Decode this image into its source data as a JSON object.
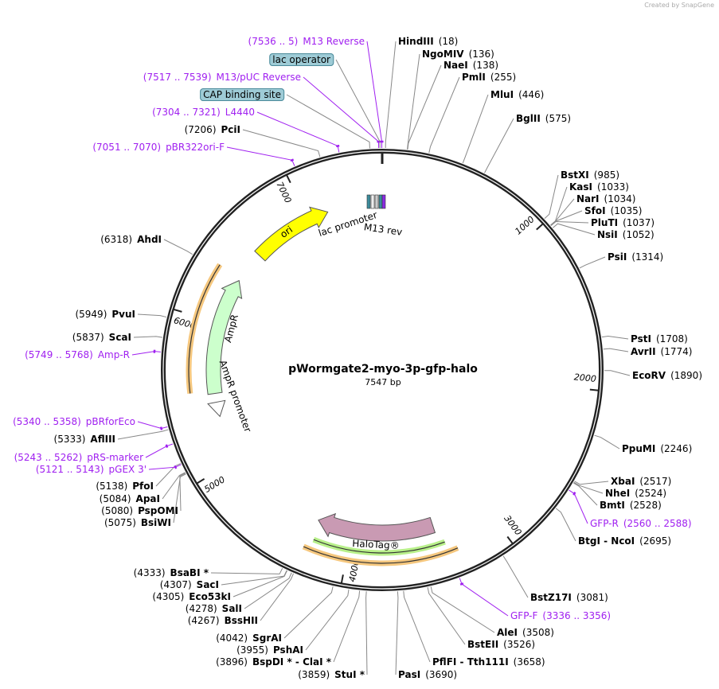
{
  "watermark": "Created by SnapGene",
  "plasmid": {
    "name": "pWormgate2-myo-3p-gfp-halo",
    "size_label": "7547 bp",
    "length": 7547
  },
  "ticks": [
    "1000",
    "2000",
    "3000",
    "4000",
    "5000",
    "6000",
    "7000"
  ],
  "features": [
    {
      "name": "ori",
      "color": "#ffff00"
    },
    {
      "name": "AmpR",
      "color": "#ccffcc"
    },
    {
      "name": "AmpR promoter",
      "color": "#ffffff"
    },
    {
      "name": "HaloTag®",
      "color": "#c99ab3"
    },
    {
      "name": "lac promoter",
      "color": "#3c8c9c"
    },
    {
      "name": "M13 rev",
      "color": "#8a2be2"
    }
  ],
  "labels": [
    {
      "name": "HindIII",
      "pos": "(18)",
      "bp": 18,
      "type": "enzyme"
    },
    {
      "name": "NgoMIV",
      "pos": "(136)",
      "bp": 136,
      "type": "enzyme"
    },
    {
      "name": "NaeI",
      "pos": "(138)",
      "bp": 138,
      "type": "enzyme"
    },
    {
      "name": "PmlI",
      "pos": "(255)",
      "bp": 255,
      "type": "enzyme"
    },
    {
      "name": "MluI",
      "pos": "(446)",
      "bp": 446,
      "type": "enzyme"
    },
    {
      "name": "BglII",
      "pos": "(575)",
      "bp": 575,
      "type": "enzyme"
    },
    {
      "name": "BstXI",
      "pos": "(985)",
      "bp": 985,
      "type": "enzyme"
    },
    {
      "name": "KasI",
      "pos": "(1033)",
      "bp": 1033,
      "type": "enzyme"
    },
    {
      "name": "NarI",
      "pos": "(1034)",
      "bp": 1034,
      "type": "enzyme"
    },
    {
      "name": "SfoI",
      "pos": "(1035)",
      "bp": 1035,
      "type": "enzyme"
    },
    {
      "name": "PluTI",
      "pos": "(1037)",
      "bp": 1037,
      "type": "enzyme"
    },
    {
      "name": "NsiI",
      "pos": "(1052)",
      "bp": 1052,
      "type": "enzyme"
    },
    {
      "name": "PsiI",
      "pos": "(1314)",
      "bp": 1314,
      "type": "enzyme"
    },
    {
      "name": "PstI",
      "pos": "(1708)",
      "bp": 1708,
      "type": "enzyme"
    },
    {
      "name": "AvrII",
      "pos": "(1774)",
      "bp": 1774,
      "type": "enzyme"
    },
    {
      "name": "EcoRV",
      "pos": "(1890)",
      "bp": 1890,
      "type": "enzyme"
    },
    {
      "name": "PpuMI",
      "pos": "(2246)",
      "bp": 2246,
      "type": "enzyme"
    },
    {
      "name": "XbaI",
      "pos": "(2517)",
      "bp": 2517,
      "type": "enzyme"
    },
    {
      "name": "NheI",
      "pos": "(2524)",
      "bp": 2524,
      "type": "enzyme"
    },
    {
      "name": "BmtI",
      "pos": "(2528)",
      "bp": 2528,
      "type": "enzyme"
    },
    {
      "name": "GFP-R",
      "pos": "(2560 .. 2588)",
      "bp": 2574,
      "type": "primer"
    },
    {
      "name": "BtgI  - NcoI",
      "pos": "(2695)",
      "bp": 2695,
      "type": "enzyme"
    },
    {
      "name": "BstZ17I",
      "pos": "(3081)",
      "bp": 3081,
      "type": "enzyme"
    },
    {
      "name": "GFP-F",
      "pos": "(3336 .. 3356)",
      "bp": 3346,
      "type": "primer"
    },
    {
      "name": "AleI",
      "pos": "(3508)",
      "bp": 3508,
      "type": "enzyme"
    },
    {
      "name": "BstEII",
      "pos": "(3526)",
      "bp": 3526,
      "type": "enzyme"
    },
    {
      "name": "PflFI  - Tth111I",
      "pos": "(3658)",
      "bp": 3658,
      "type": "enzyme"
    },
    {
      "name": "PasI",
      "pos": "(3690)",
      "bp": 3690,
      "type": "enzyme"
    },
    {
      "name": "StuI *",
      "pos": "(3859)",
      "bp": 3859,
      "type": "enzyme"
    },
    {
      "name": "BspDI *  - ClaI *",
      "pos": "(3896)",
      "bp": 3896,
      "type": "enzyme"
    },
    {
      "name": "PshAI",
      "pos": "(3955)",
      "bp": 3955,
      "type": "enzyme"
    },
    {
      "name": "SgrAI",
      "pos": "(4042)",
      "bp": 4042,
      "type": "enzyme"
    },
    {
      "name": "BssHII",
      "pos": "(4267)",
      "bp": 4267,
      "type": "enzyme"
    },
    {
      "name": "SalI",
      "pos": "(4278)",
      "bp": 4278,
      "type": "enzyme"
    },
    {
      "name": "Eco53kI",
      "pos": "(4305)",
      "bp": 4305,
      "type": "enzyme"
    },
    {
      "name": "SacI",
      "pos": "(4307)",
      "bp": 4307,
      "type": "enzyme"
    },
    {
      "name": "BsaBI *",
      "pos": "(4333)",
      "bp": 4333,
      "type": "enzyme"
    },
    {
      "name": "BsiWI",
      "pos": "(5075)",
      "bp": 5075,
      "type": "enzyme"
    },
    {
      "name": "PspOMI",
      "pos": "(5080)",
      "bp": 5080,
      "type": "enzyme"
    },
    {
      "name": "ApaI",
      "pos": "(5084)",
      "bp": 5084,
      "type": "enzyme"
    },
    {
      "name": "PfoI",
      "pos": "(5138)",
      "bp": 5138,
      "type": "enzyme"
    },
    {
      "name": "pGEX 3'",
      "pos": "(5121 .. 5143)",
      "bp": 5132,
      "type": "primer"
    },
    {
      "name": "pRS-marker",
      "pos": "(5243 .. 5262)",
      "bp": 5252,
      "type": "primer"
    },
    {
      "name": "AflIII",
      "pos": "(5333)",
      "bp": 5333,
      "type": "enzyme"
    },
    {
      "name": "pBRforEco",
      "pos": "(5340 .. 5358)",
      "bp": 5349,
      "type": "primer"
    },
    {
      "name": "Amp-R",
      "pos": "(5749 .. 5768)",
      "bp": 5758,
      "type": "primer"
    },
    {
      "name": "ScaI",
      "pos": "(5837)",
      "bp": 5837,
      "type": "enzyme"
    },
    {
      "name": "PvuI",
      "pos": "(5949)",
      "bp": 5949,
      "type": "enzyme"
    },
    {
      "name": "AhdI",
      "pos": "(6318)",
      "bp": 6318,
      "type": "enzyme"
    },
    {
      "name": "pBR322ori-F",
      "pos": "(7051 .. 7070)",
      "bp": 7060,
      "type": "primer"
    },
    {
      "name": "PciI",
      "pos": "(7206)",
      "bp": 7206,
      "type": "enzyme"
    },
    {
      "name": "L4440",
      "pos": "(7304 .. 7321)",
      "bp": 7312,
      "type": "primer"
    },
    {
      "name": "CAP binding site",
      "pos": "",
      "bp": 7480,
      "type": "feature"
    },
    {
      "name": "M13/pUC Reverse",
      "pos": "(7517 .. 7539)",
      "bp": 7528,
      "type": "primer"
    },
    {
      "name": "lac operator",
      "pos": "",
      "bp": 7535,
      "type": "feature"
    },
    {
      "name": "M13 Reverse",
      "pos": "(7536 .. 5)",
      "bp": 7545,
      "type": "primer"
    }
  ],
  "colors": {
    "primer": "#a020f0",
    "backbone": "#222222",
    "orange_band": "#f5c77e",
    "green_band": "#b8f08a"
  }
}
